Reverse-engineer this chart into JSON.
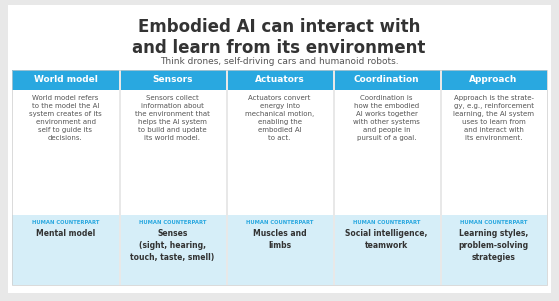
{
  "title": "Embodied AI can interact with\nand learn from its environment",
  "subtitle": "Think drones, self-driving cars and humanoid robots.",
  "bg_color": "#e8e8e8",
  "card_bg": "#ffffff",
  "header_bg": "#29a8e0",
  "human_bg": "#d6eef8",
  "header_text_color": "#ffffff",
  "title_color": "#333333",
  "subtitle_color": "#555555",
  "body_text_color": "#555555",
  "human_label_color": "#29a8e0",
  "human_value_color": "#333333",
  "columns": [
    {
      "header": "World model",
      "body": "World model refers\nto the model the AI\nsystem creates of its\nenvironment and\nself to guide its\ndecisions.",
      "human_counterpart": "Mental model"
    },
    {
      "header": "Sensors",
      "body": "Sensors collect\ninformation about\nthe environment that\nhelps the AI system\nto build and update\nits world model.",
      "human_counterpart": "Senses\n(sight, hearing,\ntouch, taste, smell)"
    },
    {
      "header": "Actuators",
      "body": "Actuators convert\nenergy into\nmechanical motion,\nenabling the\nembodied AI\nto act.",
      "human_counterpart": "Muscles and\nlimbs"
    },
    {
      "header": "Coordination",
      "body": "Coordination is\nhow the embodied\nAI works together\nwith other systems\nand people in\npursuit of a goal.",
      "human_counterpart": "Social intelligence,\nteamwork"
    },
    {
      "header": "Approach",
      "body": "Approach is the strate-\ngy, e.g., reinforcement\nlearning, the AI system\nuses to learn from\nand interact with\nits environment.",
      "human_counterpart": "Learning styles,\nproblem-solving\nstrategies"
    }
  ]
}
